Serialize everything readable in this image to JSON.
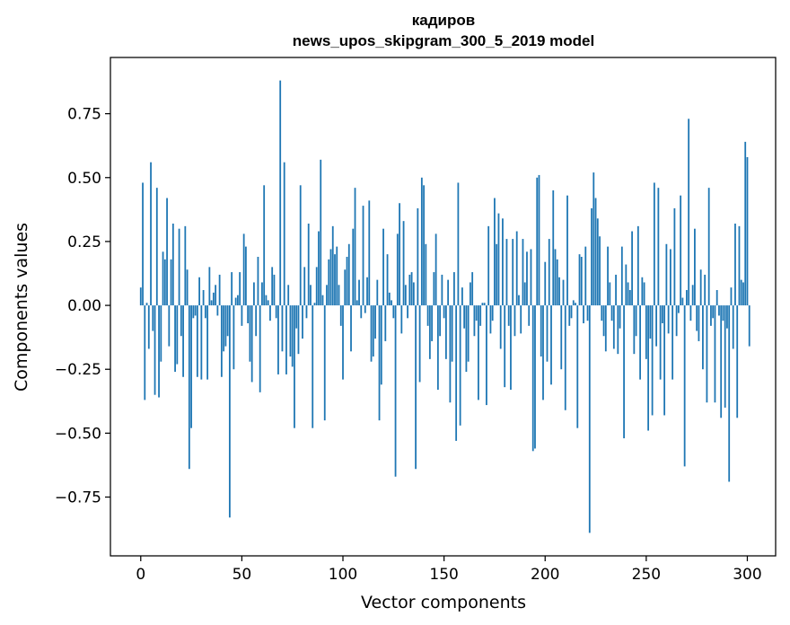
{
  "chart_data": {
    "type": "bar",
    "title": "кадиров",
    "subtitle": "news_upos_skipgram_300_5_2019 model",
    "xlabel": "Vector components",
    "ylabel": "Components values",
    "xlim": [
      -15,
      314
    ],
    "ylim": [
      -0.98,
      0.97
    ],
    "xticks": [
      0,
      50,
      100,
      150,
      200,
      250,
      300
    ],
    "yticks": [
      -0.75,
      -0.5,
      -0.25,
      0.0,
      0.25,
      0.5,
      0.75
    ],
    "xtick_labels": [
      "0",
      "50",
      "100",
      "150",
      "200",
      "250",
      "300"
    ],
    "ytick_labels": [
      "−0.75",
      "−0.50",
      "−0.25",
      "0.00",
      "0.25",
      "0.50",
      "0.75"
    ],
    "bar_color": "#1f77b4",
    "grid": false,
    "values": [
      0.07,
      0.48,
      -0.37,
      0.01,
      -0.17,
      0.56,
      -0.1,
      -0.35,
      0.46,
      -0.36,
      -0.22,
      0.21,
      0.18,
      0.42,
      -0.16,
      0.18,
      0.32,
      -0.26,
      -0.23,
      0.3,
      -0.12,
      -0.28,
      0.31,
      0.14,
      -0.64,
      -0.48,
      -0.05,
      -0.04,
      -0.28,
      0.11,
      -0.29,
      0.06,
      -0.05,
      -0.29,
      0.15,
      0.02,
      0.05,
      0.08,
      -0.04,
      0.12,
      -0.28,
      -0.18,
      -0.16,
      -0.12,
      -0.83,
      0.13,
      -0.25,
      0.03,
      0.04,
      0.13,
      -0.08,
      0.28,
      0.23,
      -0.07,
      -0.22,
      -0.3,
      0.09,
      -0.12,
      0.19,
      -0.34,
      0.09,
      0.47,
      0.04,
      0.02,
      -0.06,
      0.15,
      0.12,
      -0.05,
      -0.27,
      0.88,
      -0.18,
      0.56,
      -0.27,
      0.08,
      -0.2,
      -0.24,
      -0.48,
      -0.09,
      -0.19,
      0.47,
      -0.13,
      0.15,
      -0.05,
      0.32,
      0.08,
      -0.48,
      0.01,
      0.15,
      0.29,
      0.57,
      0.04,
      -0.45,
      0.08,
      0.18,
      0.22,
      0.31,
      0.2,
      0.23,
      0.08,
      -0.08,
      -0.29,
      0.14,
      0.19,
      0.24,
      -0.18,
      0.3,
      0.46,
      0.02,
      0.1,
      -0.05,
      0.39,
      -0.03,
      0.11,
      0.41,
      -0.22,
      -0.2,
      -0.13,
      0.1,
      -0.45,
      -0.31,
      0.3,
      -0.14,
      0.2,
      0.05,
      0.02,
      -0.05,
      -0.67,
      0.28,
      0.4,
      -0.11,
      0.33,
      0.08,
      -0.05,
      0.12,
      0.13,
      0.09,
      -0.64,
      0.38,
      -0.3,
      0.5,
      0.47,
      0.24,
      -0.08,
      -0.21,
      -0.14,
      0.13,
      0.28,
      -0.33,
      -0.12,
      0.12,
      -0.05,
      -0.21,
      0.1,
      -0.38,
      -0.22,
      0.13,
      -0.53,
      0.48,
      -0.47,
      0.07,
      -0.09,
      -0.26,
      -0.22,
      0.09,
      0.13,
      -0.12,
      -0.06,
      -0.37,
      -0.08,
      0.01,
      0.01,
      -0.39,
      0.31,
      -0.11,
      -0.06,
      0.42,
      0.24,
      0.36,
      -0.17,
      0.34,
      -0.32,
      0.26,
      -0.08,
      -0.33,
      0.26,
      -0.12,
      0.29,
      0.04,
      -0.11,
      0.26,
      0.09,
      0.21,
      -0.08,
      0.22,
      -0.57,
      -0.56,
      0.5,
      0.51,
      -0.2,
      -0.37,
      0.17,
      -0.22,
      0.26,
      -0.31,
      0.45,
      0.22,
      0.18,
      0.11,
      -0.25,
      0.1,
      -0.41,
      0.43,
      -0.08,
      -0.05,
      0.02,
      0.01,
      -0.48,
      0.2,
      0.19,
      -0.07,
      0.23,
      -0.06,
      -0.89,
      0.38,
      0.52,
      0.42,
      0.34,
      0.27,
      -0.06,
      -0.12,
      -0.18,
      0.23,
      0.09,
      -0.06,
      -0.17,
      0.12,
      -0.19,
      -0.09,
      0.23,
      -0.52,
      0.16,
      0.09,
      0.06,
      0.29,
      -0.19,
      -0.12,
      0.31,
      -0.29,
      0.11,
      0.09,
      -0.21,
      -0.49,
      -0.13,
      -0.43,
      0.48,
      -0.16,
      0.46,
      -0.29,
      -0.07,
      -0.43,
      0.24,
      -0.11,
      0.22,
      -0.29,
      0.38,
      -0.12,
      -0.03,
      0.43,
      0.03,
      -0.63,
      0.06,
      0.73,
      -0.06,
      0.08,
      0.3,
      -0.1,
      -0.14,
      0.14,
      -0.25,
      0.12,
      -0.38,
      0.46,
      -0.08,
      -0.05,
      -0.38,
      0.06,
      -0.04,
      -0.44,
      -0.06,
      -0.4,
      -0.09,
      -0.69,
      0.07,
      -0.17,
      0.32,
      -0.44,
      0.31,
      0.1,
      0.09,
      0.64,
      0.58,
      -0.16
    ]
  }
}
